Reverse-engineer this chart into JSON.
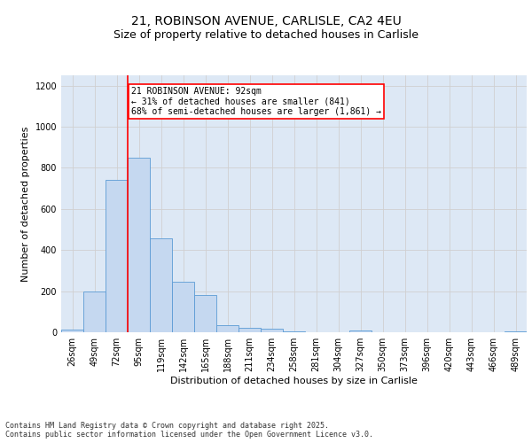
{
  "title_line1": "21, ROBINSON AVENUE, CARLISLE, CA2 4EU",
  "title_line2": "Size of property relative to detached houses in Carlisle",
  "xlabel": "Distribution of detached houses by size in Carlisle",
  "ylabel": "Number of detached properties",
  "categories": [
    "26sqm",
    "49sqm",
    "72sqm",
    "95sqm",
    "119sqm",
    "142sqm",
    "165sqm",
    "188sqm",
    "211sqm",
    "234sqm",
    "258sqm",
    "281sqm",
    "304sqm",
    "327sqm",
    "350sqm",
    "373sqm",
    "396sqm",
    "420sqm",
    "443sqm",
    "466sqm",
    "489sqm"
  ],
  "values": [
    12,
    200,
    740,
    850,
    455,
    245,
    180,
    35,
    22,
    16,
    5,
    0,
    0,
    8,
    0,
    0,
    0,
    0,
    0,
    0,
    5
  ],
  "bar_color": "#c5d8f0",
  "bar_edge_color": "#5b9bd5",
  "grid_color": "#d0d0d0",
  "background_color": "#dde8f5",
  "vline_color": "red",
  "vline_x_index": 2.5,
  "annotation_text": "21 ROBINSON AVENUE: 92sqm\n← 31% of detached houses are smaller (841)\n68% of semi-detached houses are larger (1,861) →",
  "annotation_box_color": "red",
  "ylim": [
    0,
    1250
  ],
  "yticks": [
    0,
    200,
    400,
    600,
    800,
    1000,
    1200
  ],
  "footer": "Contains HM Land Registry data © Crown copyright and database right 2025.\nContains public sector information licensed under the Open Government Licence v3.0.",
  "title_fontsize": 10,
  "subtitle_fontsize": 9,
  "axis_label_fontsize": 8,
  "tick_fontsize": 7,
  "annotation_fontsize": 7,
  "footer_fontsize": 6
}
